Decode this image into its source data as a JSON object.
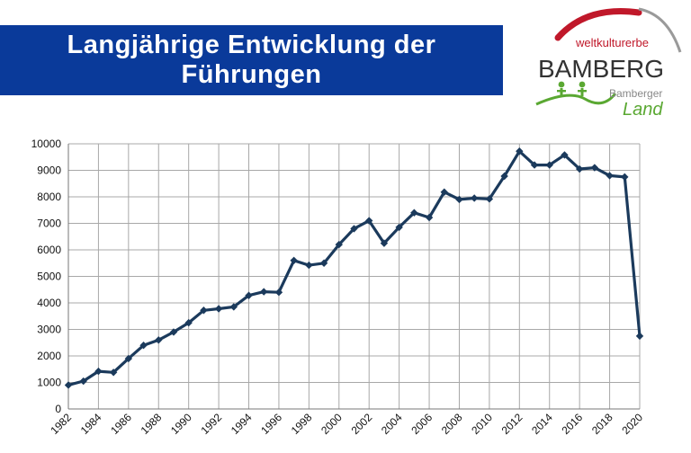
{
  "header": {
    "title_line1": "Langjährige Entwicklung der",
    "title_line2": "Führungen",
    "title_bg_color": "#0a3a9a"
  },
  "logo": {
    "top_text": "weltkulturerbe",
    "main_text": "BAMBERG",
    "sub_text1": "Bamberger",
    "sub_text2": "Land",
    "arc_color": "#c0182a",
    "green_color": "#5aa832"
  },
  "chart_data": {
    "type": "line",
    "title": "",
    "xlabel": "",
    "ylabel": "",
    "ylim": [
      0,
      10000
    ],
    "yticks": [
      0,
      1000,
      2000,
      3000,
      4000,
      5000,
      6000,
      7000,
      8000,
      9000,
      10000
    ],
    "xlim": [
      1982,
      2020
    ],
    "xticks": [
      1982,
      1984,
      1986,
      1988,
      1990,
      1992,
      1994,
      1996,
      1998,
      2000,
      2002,
      2004,
      2006,
      2008,
      2010,
      2012,
      2014,
      2016,
      2018,
      2020
    ],
    "grid": true,
    "legend": "none",
    "line_color": "#1b3a5c",
    "marker": "diamond",
    "series": [
      {
        "x": [
          1982,
          1983,
          1984,
          1985,
          1986,
          1987,
          1988,
          1989,
          1990,
          1991,
          1992,
          1993,
          1994,
          1995,
          1996,
          1997,
          1998,
          1999,
          2000,
          2001,
          2002,
          2003,
          2004,
          2005,
          2006,
          2007,
          2008,
          2009,
          2010,
          2011,
          2012,
          2013,
          2014,
          2015,
          2016,
          2017,
          2018,
          2019,
          2020
        ],
        "values": [
          900,
          1050,
          1420,
          1380,
          1900,
          2400,
          2600,
          2900,
          3250,
          3720,
          3780,
          3850,
          4280,
          4420,
          4400,
          5600,
          5420,
          5500,
          6200,
          6800,
          7100,
          6250,
          6850,
          7400,
          7220,
          8180,
          7900,
          7950,
          7920,
          8780,
          9720,
          9200,
          9200,
          9580,
          9050,
          9100,
          8800,
          8750,
          2750
        ]
      }
    ]
  }
}
